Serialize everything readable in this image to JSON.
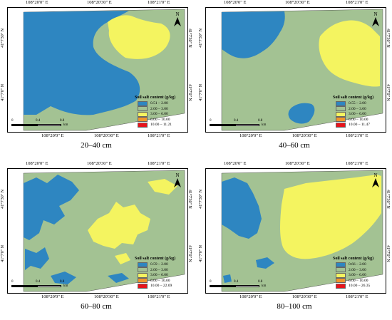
{
  "coords": {
    "lon_top": [
      "108°20'0\" E",
      "108°20'30\" E",
      "108°21'0\" E"
    ],
    "lon_bottom": [
      "108°20'0\" E",
      "108°20'30\" E",
      "108°21'0\" E"
    ],
    "lat": [
      "41°7'30\" N",
      "41°7'0\" N"
    ]
  },
  "scale": {
    "ticks": [
      "0",
      "0.4",
      "0.8"
    ],
    "unit": "km"
  },
  "north_label": "N",
  "legend_title": "Soil salt content (g/kg)",
  "colors": {
    "c1": "#2e86c1",
    "c2": "#a3c293",
    "c3": "#f4f460",
    "c4": "#f0962c",
    "c5": "#e8141c"
  },
  "panels": [
    {
      "caption": "20–40 cm",
      "classes": [
        "0.51 – 2.00",
        "2.00 – 3.00",
        "3.00 – 6.00",
        "6.00 – 10.00",
        "10.00 – 11.21"
      ]
    },
    {
      "caption": "40–60 cm",
      "classes": [
        "0.55 – 2.00",
        "2.00 – 3.00",
        "3.00 – 6.00",
        "6.00 – 10.00",
        "10.00 – 11.47"
      ]
    },
    {
      "caption": "60–80 cm",
      "classes": [
        "0.59 – 2.00",
        "2.00 – 3.00",
        "3.00 – 6.00",
        "6.00 – 10.00",
        "10.00 – 22.69"
      ]
    },
    {
      "caption": "80–100 cm",
      "classes": [
        "0.66 – 2.00",
        "2.00 – 3.00",
        "3.00 – 6.00",
        "6.00 – 10.00",
        "10.00 – 26.35"
      ]
    }
  ]
}
